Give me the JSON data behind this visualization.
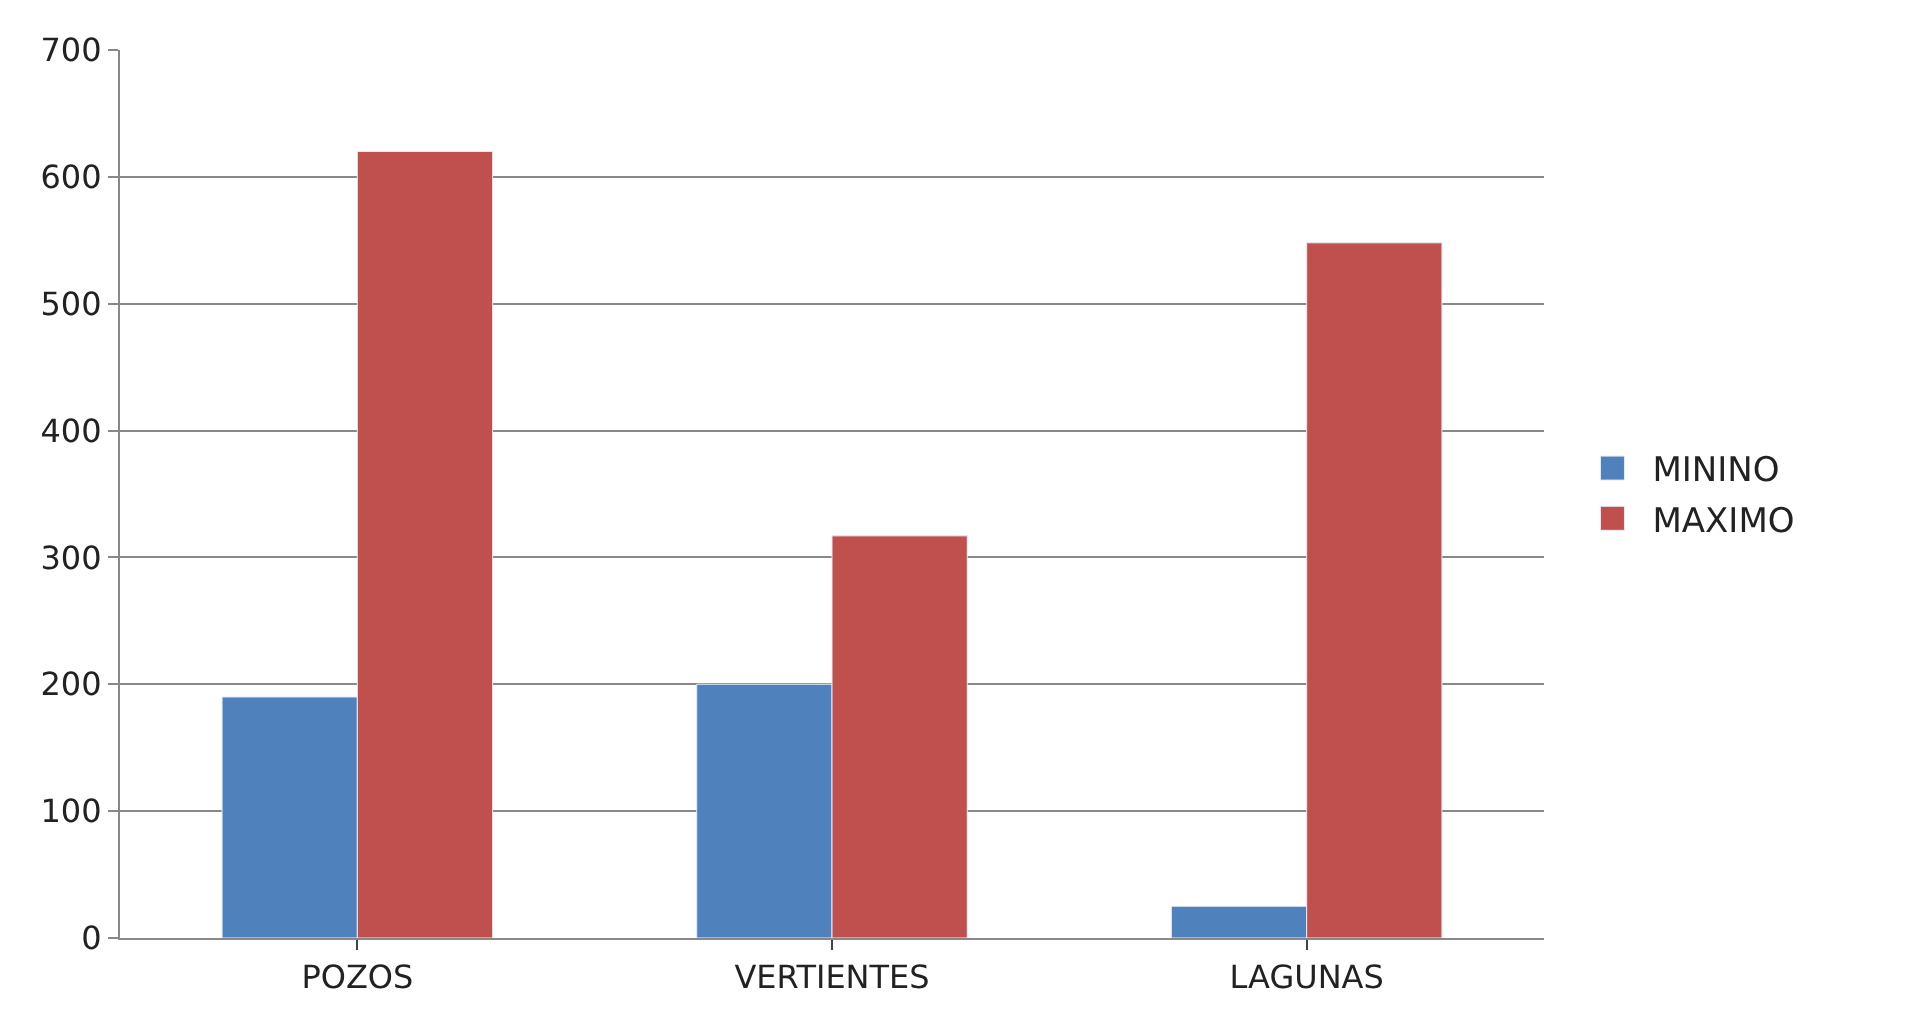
{
  "chart_data": {
    "type": "bar",
    "categories": [
      "POZOS",
      "VERTIENTES",
      "LAGUNAS"
    ],
    "series": [
      {
        "name": "MININO",
        "color": "#4f81bd",
        "values": [
          190,
          200,
          25
        ]
      },
      {
        "name": "MAXIMO",
        "color": "#c0504d",
        "values": [
          620,
          317,
          548
        ]
      }
    ],
    "ylim": [
      0,
      700
    ],
    "yticks": [
      0,
      100,
      200,
      300,
      400,
      500,
      600,
      700
    ],
    "grid": "y",
    "legend": "right"
  }
}
